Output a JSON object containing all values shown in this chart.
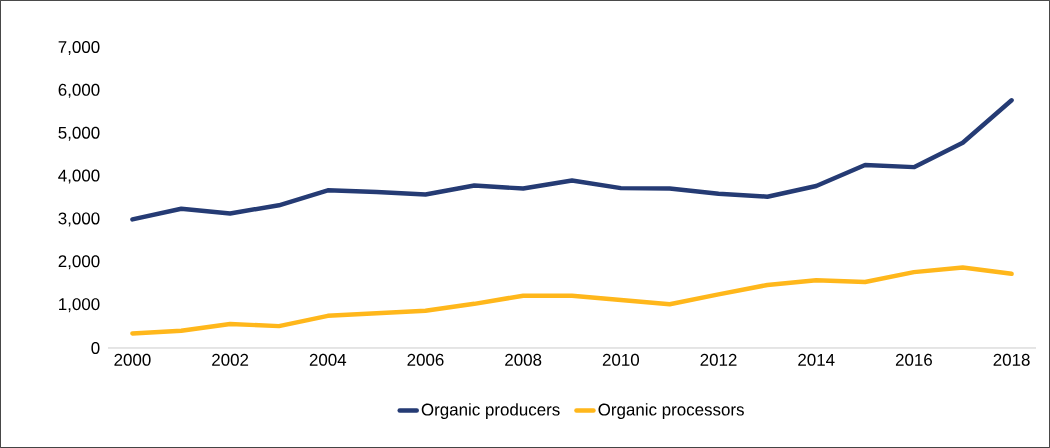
{
  "chart_data": {
    "type": "line",
    "x": [
      2000,
      2001,
      2002,
      2003,
      2004,
      2005,
      2006,
      2007,
      2008,
      2009,
      2010,
      2011,
      2012,
      2013,
      2014,
      2015,
      2016,
      2017,
      2018
    ],
    "series": [
      {
        "name": "Organic producers",
        "color": "#253b74",
        "values": [
          3000,
          3250,
          3140,
          3330,
          3680,
          3640,
          3580,
          3790,
          3720,
          3910,
          3730,
          3720,
          3600,
          3530,
          3780,
          4270,
          4220,
          4790,
          5780
        ]
      },
      {
        "name": "Organic processors",
        "color": "#ffb71b",
        "values": [
          340,
          400,
          560,
          510,
          750,
          810,
          870,
          1030,
          1220,
          1220,
          1120,
          1020,
          1250,
          1470,
          1580,
          1540,
          1770,
          1880,
          1730
        ]
      }
    ],
    "xlim": [
      1999.5,
      2018.5
    ],
    "xticks": [
      2000,
      2002,
      2004,
      2006,
      2008,
      2010,
      2012,
      2014,
      2016,
      2018
    ],
    "ylim": [
      0,
      7000
    ],
    "yticks": [
      {
        "value": 0,
        "label": "0"
      },
      {
        "value": 1000,
        "label": "1,000"
      },
      {
        "value": 2000,
        "label": "2,000"
      },
      {
        "value": 3000,
        "label": "3,000"
      },
      {
        "value": 4000,
        "label": "4,000"
      },
      {
        "value": 5000,
        "label": "5,000"
      },
      {
        "value": 6000,
        "label": "6,000"
      },
      {
        "value": 7000,
        "label": "7,000"
      }
    ],
    "grid": false,
    "legend": "bottom",
    "marker": "none",
    "line_style": "solid"
  }
}
